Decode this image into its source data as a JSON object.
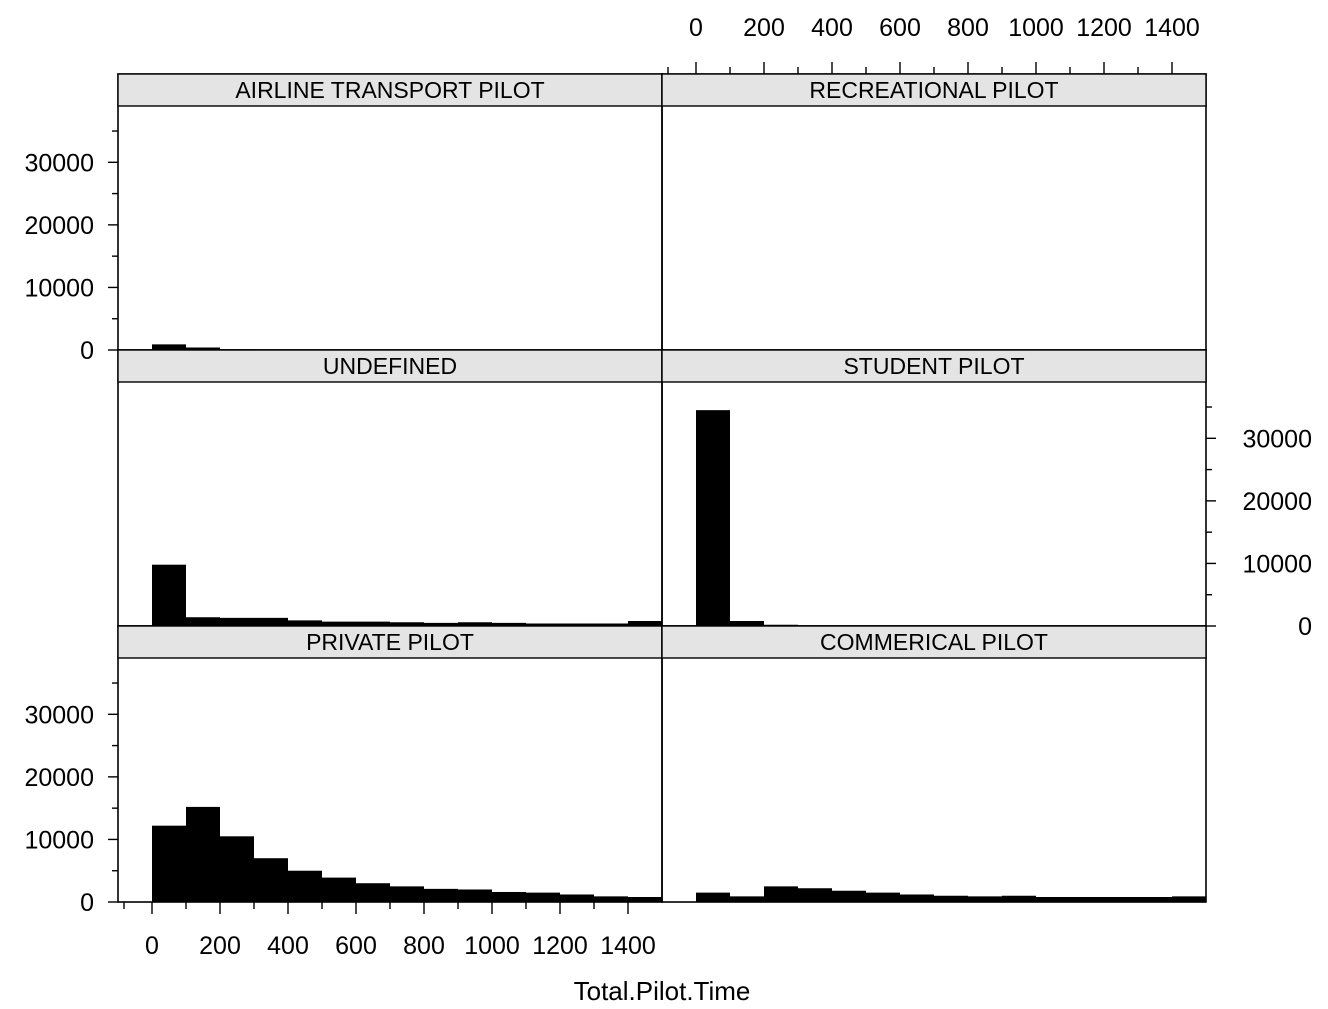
{
  "chart_data": {
    "type": "bar",
    "xlabel": "Total.Pilot.Time",
    "ylabel": "",
    "xlim": [
      -100,
      1500
    ],
    "ylim": [
      0,
      39000
    ],
    "x_ticks": [
      0,
      200,
      400,
      600,
      800,
      1000,
      1200,
      1400
    ],
    "y_ticks": [
      0,
      10000,
      20000,
      30000
    ],
    "bin_width": 100,
    "bin_starts": [
      0,
      100,
      200,
      300,
      400,
      500,
      600,
      700,
      800,
      900,
      1000,
      1100,
      1200,
      1300,
      1400
    ],
    "colors": {
      "bar": "#000000",
      "strip": "#e4e4e4"
    },
    "panels": [
      {
        "name": "AIRLINE TRANSPORT PILOT",
        "row": 1,
        "col": 1,
        "values": [
          900,
          400,
          100,
          0,
          0,
          0,
          0,
          0,
          0,
          0,
          0,
          0,
          0,
          0,
          0
        ]
      },
      {
        "name": "RECREATIONAL PILOT",
        "row": 1,
        "col": 2,
        "values": [
          0,
          0,
          0,
          0,
          0,
          0,
          0,
          0,
          0,
          0,
          0,
          0,
          0,
          0,
          0
        ]
      },
      {
        "name": "UNDEFINED",
        "row": 2,
        "col": 1,
        "values": [
          9800,
          1400,
          1300,
          1300,
          900,
          700,
          700,
          600,
          500,
          600,
          500,
          400,
          400,
          400,
          800
        ]
      },
      {
        "name": "STUDENT PILOT",
        "row": 2,
        "col": 2,
        "values": [
          34500,
          800,
          200,
          0,
          0,
          0,
          0,
          0,
          0,
          0,
          0,
          0,
          0,
          0,
          0
        ]
      },
      {
        "name": "PRIVATE PILOT",
        "row": 3,
        "col": 1,
        "values": [
          12200,
          15200,
          10500,
          7000,
          5000,
          3900,
          3000,
          2500,
          2100,
          2000,
          1600,
          1500,
          1200,
          900,
          800
        ]
      },
      {
        "name": "COMMERICAL PILOT",
        "row": 3,
        "col": 2,
        "values": [
          1500,
          900,
          2500,
          2200,
          1800,
          1500,
          1200,
          1000,
          900,
          1000,
          800,
          800,
          800,
          800,
          900
        ]
      }
    ]
  }
}
